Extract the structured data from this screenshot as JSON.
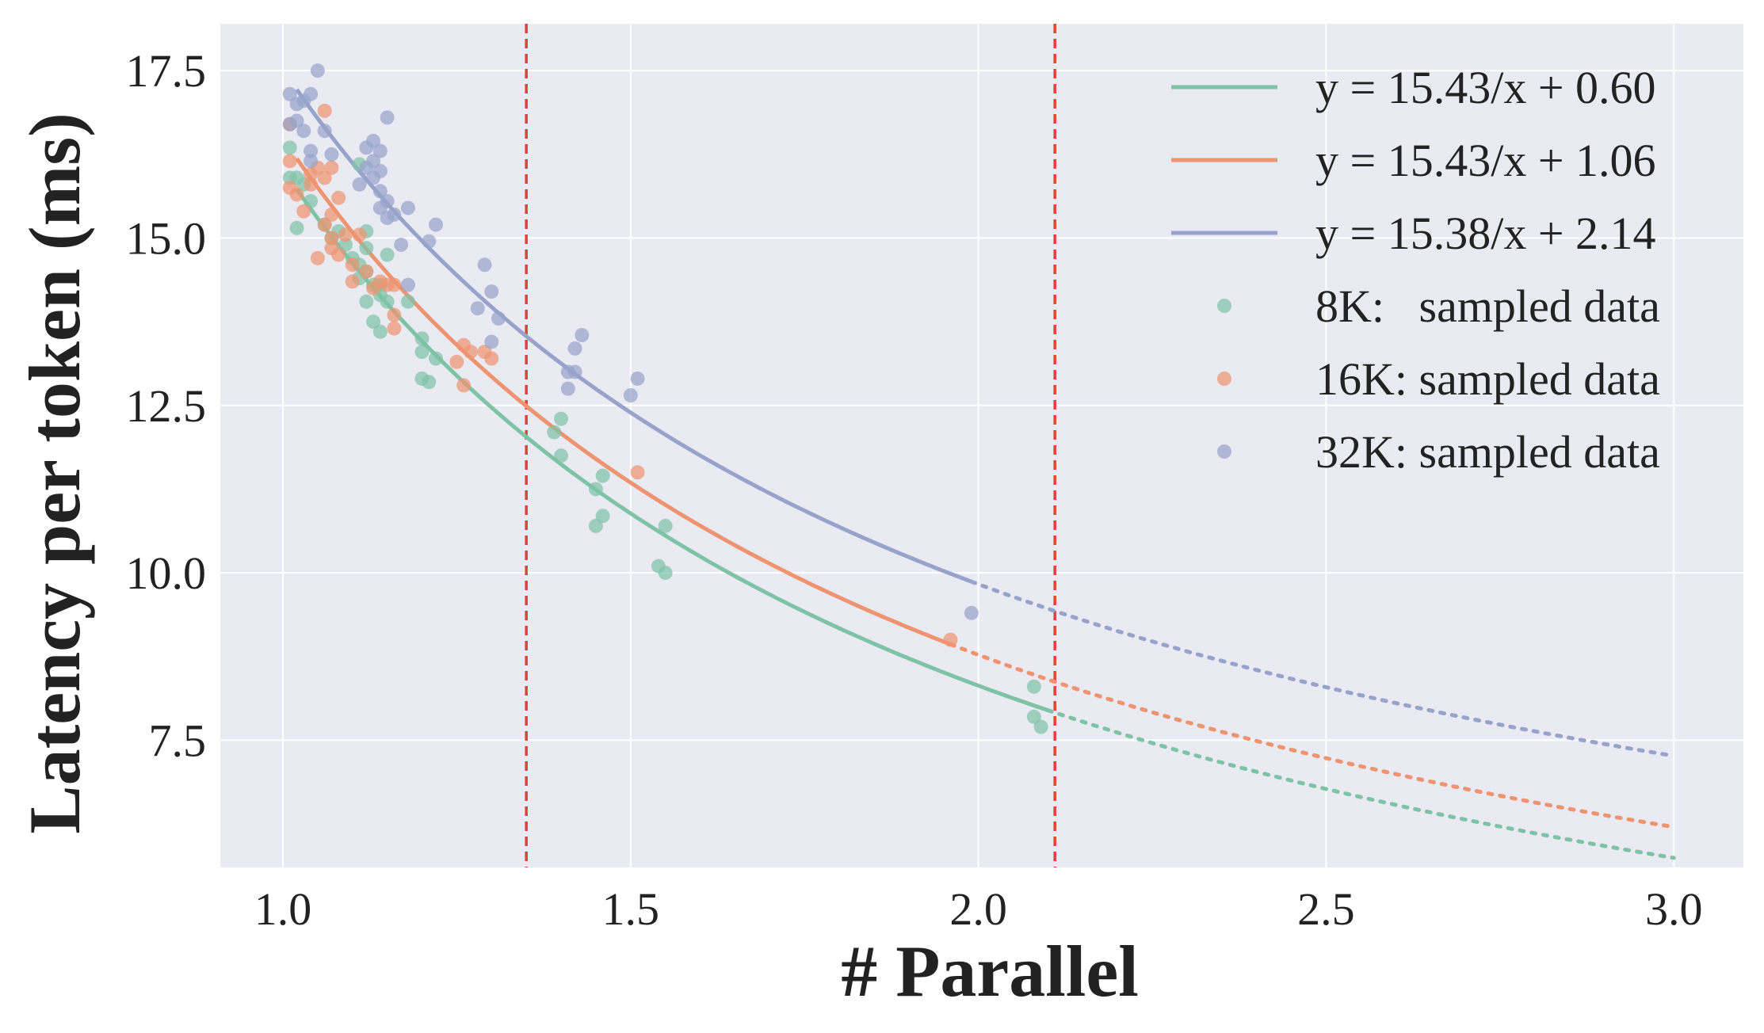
{
  "chart_data": {
    "type": "scatter",
    "title": "",
    "xlabel": "# Parallel",
    "ylabel": "Latency per token (ms)",
    "xlim": [
      0.91,
      3.1
    ],
    "ylim": [
      5.6,
      18.2
    ],
    "xticks": [
      "1.0",
      "1.5",
      "2.0",
      "2.5",
      "3.0"
    ],
    "xtick_values": [
      1.0,
      1.5,
      2.0,
      2.5,
      3.0
    ],
    "yticks": [
      "7.5",
      "10.0",
      "12.5",
      "15.0",
      "17.5"
    ],
    "ytick_values": [
      7.5,
      10.0,
      12.5,
      15.0,
      17.5
    ],
    "grid": true,
    "legend_position": "top-right",
    "vlines": [
      1.35,
      2.11
    ],
    "vline_color": "#e0413a",
    "background": "#eaeaf2",
    "fits": [
      {
        "label": "y = 15.43/x + 0.60",
        "a": 15.43,
        "b": 0.6,
        "color": "#7fc3a7",
        "solid_range": [
          1.02,
          2.1
        ],
        "dotted_range": [
          2.1,
          3.0
        ]
      },
      {
        "label": "y = 15.43/x + 1.06",
        "a": 15.43,
        "b": 1.06,
        "color": "#ee9470",
        "solid_range": [
          1.02,
          1.96
        ],
        "dotted_range": [
          1.96,
          3.0
        ]
      },
      {
        "label": "y = 15.38/x + 2.14",
        "a": 15.38,
        "b": 2.14,
        "color": "#97a3cb",
        "solid_range": [
          1.02,
          1.99
        ],
        "dotted_range": [
          1.99,
          3.0
        ]
      }
    ],
    "series": [
      {
        "name": "8K:   sampled data",
        "color": "#7fc3a7",
        "points": [
          [
            1.01,
            15.9
          ],
          [
            1.01,
            16.35
          ],
          [
            1.02,
            15.15
          ],
          [
            1.02,
            15.9
          ],
          [
            1.03,
            15.8
          ],
          [
            1.04,
            15.55
          ],
          [
            1.06,
            15.2
          ],
          [
            1.07,
            15.0
          ],
          [
            1.08,
            15.1
          ],
          [
            1.09,
            14.9
          ],
          [
            1.1,
            14.7
          ],
          [
            1.11,
            14.6
          ],
          [
            1.11,
            14.4
          ],
          [
            1.12,
            14.5
          ],
          [
            1.12,
            14.05
          ],
          [
            1.13,
            14.3
          ],
          [
            1.13,
            13.75
          ],
          [
            1.14,
            14.15
          ],
          [
            1.14,
            13.6
          ],
          [
            1.15,
            14.05
          ],
          [
            1.11,
            16.1
          ],
          [
            1.12,
            15.1
          ],
          [
            1.12,
            14.85
          ],
          [
            1.14,
            14.3
          ],
          [
            1.15,
            14.75
          ],
          [
            1.18,
            14.05
          ],
          [
            1.2,
            13.5
          ],
          [
            1.2,
            13.3
          ],
          [
            1.22,
            13.2
          ],
          [
            1.2,
            12.9
          ],
          [
            1.21,
            12.85
          ],
          [
            1.39,
            12.1
          ],
          [
            1.4,
            12.3
          ],
          [
            1.4,
            11.75
          ],
          [
            1.45,
            11.25
          ],
          [
            1.46,
            11.45
          ],
          [
            1.45,
            10.7
          ],
          [
            1.46,
            10.85
          ],
          [
            1.55,
            10.7
          ],
          [
            1.54,
            10.1
          ],
          [
            1.55,
            10.0
          ],
          [
            2.08,
            8.3
          ],
          [
            2.08,
            7.85
          ],
          [
            2.09,
            7.7
          ]
        ]
      },
      {
        "name": "16K: sampled data",
        "color": "#ee9470",
        "points": [
          [
            1.01,
            15.75
          ],
          [
            1.01,
            16.15
          ],
          [
            1.01,
            16.7
          ],
          [
            1.02,
            15.65
          ],
          [
            1.03,
            15.4
          ],
          [
            1.04,
            15.8
          ],
          [
            1.04,
            15.95
          ],
          [
            1.05,
            16.05
          ],
          [
            1.05,
            14.7
          ],
          [
            1.06,
            15.2
          ],
          [
            1.06,
            15.9
          ],
          [
            1.06,
            16.9
          ],
          [
            1.07,
            16.05
          ],
          [
            1.07,
            15.35
          ],
          [
            1.07,
            15.0
          ],
          [
            1.07,
            14.85
          ],
          [
            1.08,
            14.75
          ],
          [
            1.08,
            15.6
          ],
          [
            1.09,
            15.05
          ],
          [
            1.1,
            14.6
          ],
          [
            1.1,
            14.35
          ],
          [
            1.11,
            15.05
          ],
          [
            1.12,
            14.5
          ],
          [
            1.13,
            14.25
          ],
          [
            1.14,
            14.35
          ],
          [
            1.15,
            14.3
          ],
          [
            1.16,
            13.85
          ],
          [
            1.16,
            13.65
          ],
          [
            1.16,
            14.3
          ],
          [
            1.25,
            13.15
          ],
          [
            1.26,
            12.8
          ],
          [
            1.26,
            13.4
          ],
          [
            1.27,
            13.3
          ],
          [
            1.29,
            13.3
          ],
          [
            1.3,
            13.2
          ],
          [
            1.51,
            11.5
          ],
          [
            1.96,
            9.0
          ]
        ]
      },
      {
        "name": "32K: sampled data",
        "color": "#97a3cb",
        "points": [
          [
            1.01,
            16.7
          ],
          [
            1.01,
            17.15
          ],
          [
            1.02,
            17.0
          ],
          [
            1.02,
            16.75
          ],
          [
            1.03,
            17.05
          ],
          [
            1.03,
            16.6
          ],
          [
            1.04,
            17.15
          ],
          [
            1.04,
            16.3
          ],
          [
            1.04,
            16.15
          ],
          [
            1.05,
            17.5
          ],
          [
            1.06,
            16.6
          ],
          [
            1.07,
            16.25
          ],
          [
            1.11,
            15.8
          ],
          [
            1.12,
            16.05
          ],
          [
            1.12,
            16.35
          ],
          [
            1.13,
            16.45
          ],
          [
            1.13,
            16.15
          ],
          [
            1.13,
            15.9
          ],
          [
            1.14,
            16.3
          ],
          [
            1.14,
            16.0
          ],
          [
            1.14,
            15.7
          ],
          [
            1.14,
            15.45
          ],
          [
            1.15,
            15.55
          ],
          [
            1.15,
            15.3
          ],
          [
            1.15,
            16.8
          ],
          [
            1.16,
            15.35
          ],
          [
            1.17,
            14.9
          ],
          [
            1.18,
            15.45
          ],
          [
            1.18,
            14.3
          ],
          [
            1.21,
            14.95
          ],
          [
            1.22,
            15.2
          ],
          [
            1.29,
            14.6
          ],
          [
            1.28,
            13.95
          ],
          [
            1.3,
            14.2
          ],
          [
            1.31,
            13.8
          ],
          [
            1.3,
            13.45
          ],
          [
            1.41,
            12.75
          ],
          [
            1.41,
            13.0
          ],
          [
            1.42,
            13.0
          ],
          [
            1.42,
            13.35
          ],
          [
            1.43,
            13.55
          ],
          [
            1.5,
            12.65
          ],
          [
            1.51,
            12.9
          ],
          [
            1.99,
            9.4
          ]
        ]
      }
    ]
  }
}
